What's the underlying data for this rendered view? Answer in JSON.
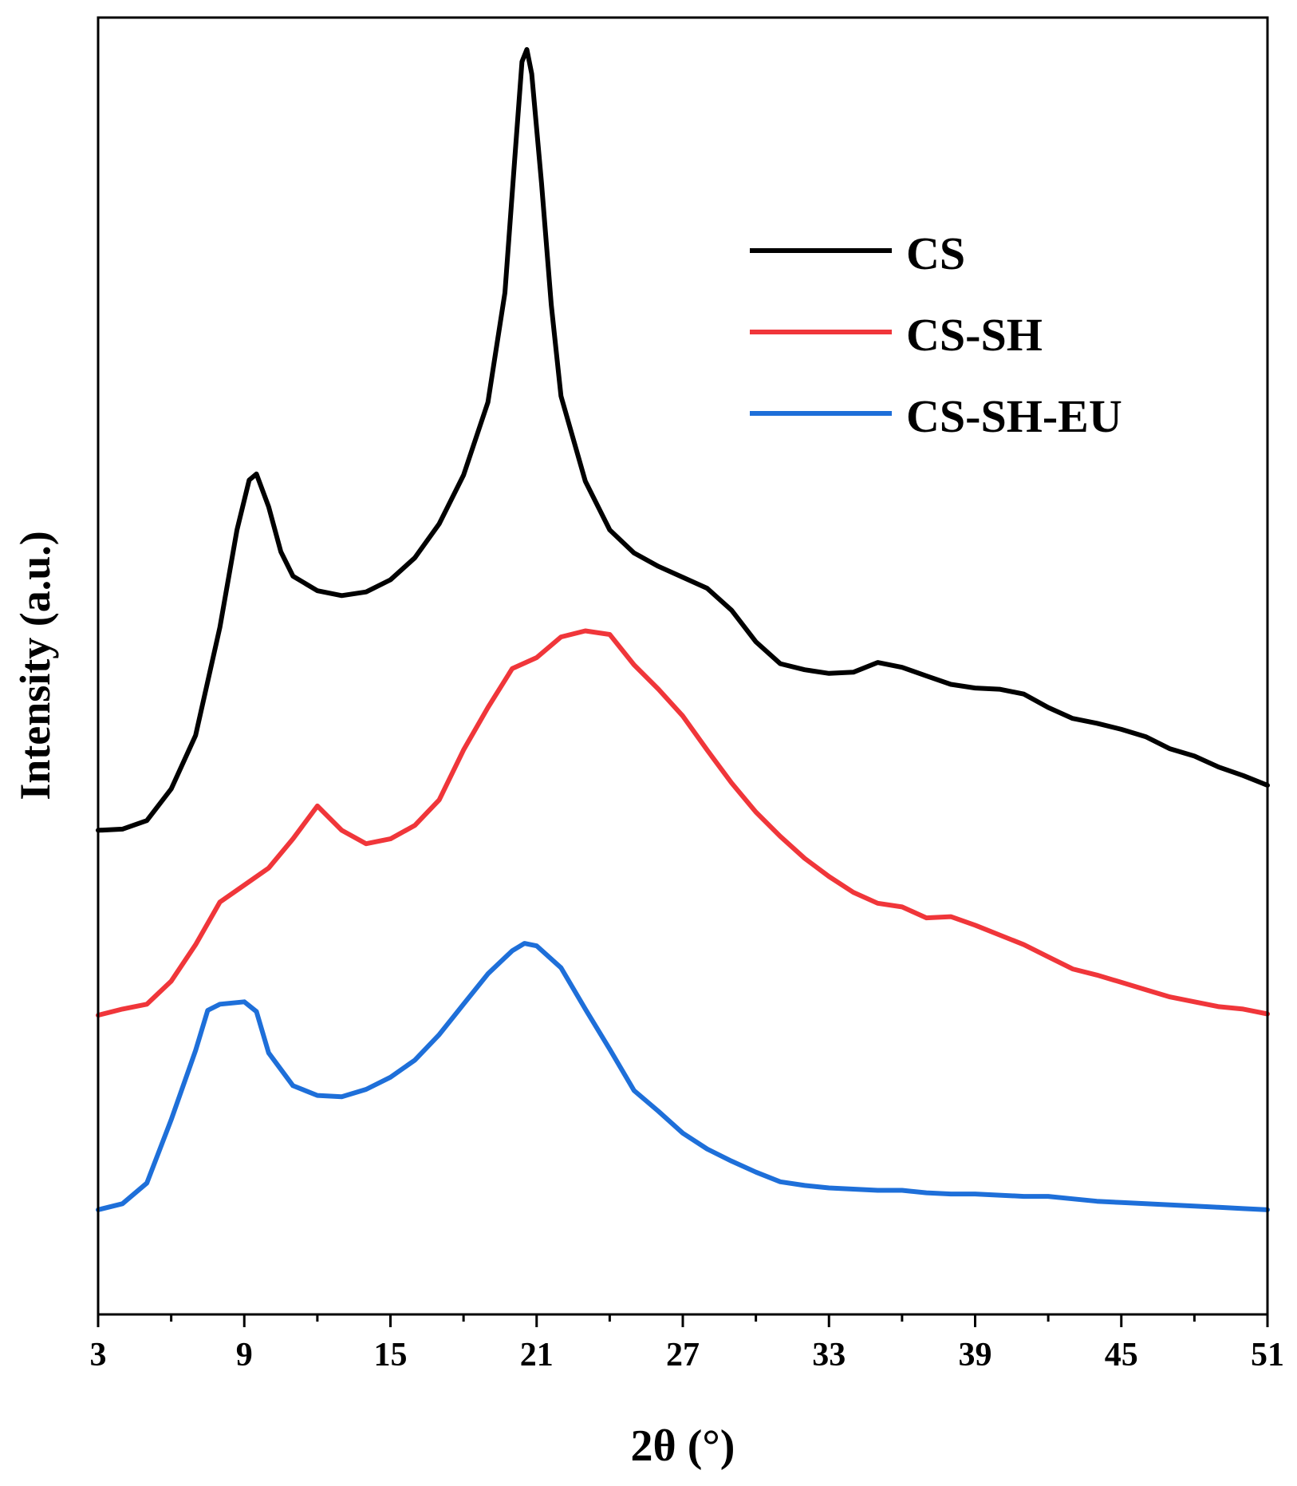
{
  "chart_data": {
    "type": "line",
    "title": "",
    "xlabel": "2θ (°)",
    "ylabel": "Intensity (a.u.)",
    "xlim": [
      3,
      51
    ],
    "ylim": [
      0,
      100
    ],
    "x_ticks": [
      3,
      9,
      15,
      21,
      27,
      33,
      39,
      45,
      51
    ],
    "x_tick_labels": [
      "3",
      "9",
      "15",
      "21",
      "27",
      "33",
      "39",
      "45",
      "51"
    ],
    "y_ticks_shown": false,
    "legend_position": "top-right",
    "series": [
      {
        "name": "CS",
        "color": "#000000",
        "points": [
          [
            3,
            35.8
          ],
          [
            4,
            35.9
          ],
          [
            5,
            36.6
          ],
          [
            6,
            39.2
          ],
          [
            7,
            43.6
          ],
          [
            8,
            52.5
          ],
          [
            8.7,
            60.5
          ],
          [
            9.2,
            64.6
          ],
          [
            9.5,
            65.1
          ],
          [
            10,
            62.4
          ],
          [
            10.5,
            58.7
          ],
          [
            11,
            56.7
          ],
          [
            12,
            55.5
          ],
          [
            13,
            55.1
          ],
          [
            14,
            55.4
          ],
          [
            15,
            56.4
          ],
          [
            16,
            58.2
          ],
          [
            17,
            61
          ],
          [
            18,
            65
          ],
          [
            19,
            71
          ],
          [
            19.7,
            80
          ],
          [
            20.1,
            91
          ],
          [
            20.4,
            99
          ],
          [
            20.6,
            100
          ],
          [
            20.8,
            98
          ],
          [
            21.2,
            89
          ],
          [
            21.6,
            79
          ],
          [
            22,
            71.5
          ],
          [
            23,
            64.5
          ],
          [
            24,
            60.5
          ],
          [
            25,
            58.6
          ],
          [
            26,
            57.5
          ],
          [
            27,
            56.6
          ],
          [
            28,
            55.7
          ],
          [
            29,
            53.9
          ],
          [
            30,
            51.3
          ],
          [
            31,
            49.5
          ],
          [
            32,
            49
          ],
          [
            33,
            48.7
          ],
          [
            34,
            48.8
          ],
          [
            35,
            49.6
          ],
          [
            36,
            49.2
          ],
          [
            37,
            48.5
          ],
          [
            38,
            47.8
          ],
          [
            39,
            47.5
          ],
          [
            40,
            47.4
          ],
          [
            41,
            47
          ],
          [
            42,
            45.9
          ],
          [
            43,
            45
          ],
          [
            44,
            44.6
          ],
          [
            45,
            44.1
          ],
          [
            46,
            43.5
          ],
          [
            47,
            42.5
          ],
          [
            48,
            41.9
          ],
          [
            49,
            41
          ],
          [
            50,
            40.3
          ],
          [
            51,
            39.5
          ]
        ]
      },
      {
        "name": "CS-SH",
        "color": "#f0363a",
        "points": [
          [
            3,
            20.6
          ],
          [
            4,
            21.1
          ],
          [
            5,
            21.5
          ],
          [
            6,
            23.4
          ],
          [
            7,
            26.4
          ],
          [
            8,
            29.9
          ],
          [
            9,
            31.3
          ],
          [
            10,
            32.7
          ],
          [
            11,
            35.1
          ],
          [
            12,
            37.8
          ],
          [
            13,
            35.8
          ],
          [
            14,
            34.7
          ],
          [
            15,
            35.1
          ],
          [
            16,
            36.2
          ],
          [
            17,
            38.3
          ],
          [
            18,
            42.4
          ],
          [
            19,
            45.9
          ],
          [
            20,
            49.1
          ],
          [
            21,
            50
          ],
          [
            22,
            51.7
          ],
          [
            23,
            52.2
          ],
          [
            24,
            51.9
          ],
          [
            25,
            49.4
          ],
          [
            26,
            47.4
          ],
          [
            27,
            45.2
          ],
          [
            28,
            42.4
          ],
          [
            29,
            39.7
          ],
          [
            30,
            37.3
          ],
          [
            31,
            35.3
          ],
          [
            32,
            33.5
          ],
          [
            33,
            32
          ],
          [
            34,
            30.7
          ],
          [
            35,
            29.8
          ],
          [
            36,
            29.5
          ],
          [
            37,
            28.6
          ],
          [
            38,
            28.7
          ],
          [
            39,
            28
          ],
          [
            40,
            27.2
          ],
          [
            41,
            26.4
          ],
          [
            42,
            25.4
          ],
          [
            43,
            24.4
          ],
          [
            44,
            23.9
          ],
          [
            45,
            23.3
          ],
          [
            46,
            22.7
          ],
          [
            47,
            22.1
          ],
          [
            48,
            21.7
          ],
          [
            49,
            21.3
          ],
          [
            50,
            21.1
          ],
          [
            51,
            20.7
          ]
        ]
      },
      {
        "name": "CS-SH-EU",
        "color": "#1e6fd9",
        "points": [
          [
            3,
            4.6
          ],
          [
            4,
            5.1
          ],
          [
            5,
            6.8
          ],
          [
            6,
            12
          ],
          [
            7,
            17.7
          ],
          [
            7.5,
            21
          ],
          [
            8,
            21.5
          ],
          [
            8.5,
            21.6
          ],
          [
            9,
            21.7
          ],
          [
            9.5,
            20.9
          ],
          [
            10,
            17.5
          ],
          [
            11,
            14.8
          ],
          [
            12,
            14
          ],
          [
            13,
            13.9
          ],
          [
            14,
            14.5
          ],
          [
            15,
            15.5
          ],
          [
            16,
            16.9
          ],
          [
            17,
            19
          ],
          [
            18,
            21.5
          ],
          [
            19,
            24
          ],
          [
            20,
            25.9
          ],
          [
            20.5,
            26.5
          ],
          [
            21,
            26.3
          ],
          [
            22,
            24.5
          ],
          [
            23,
            21.1
          ],
          [
            24,
            17.8
          ],
          [
            25,
            14.4
          ],
          [
            26,
            12.7
          ],
          [
            27,
            10.9
          ],
          [
            28,
            9.6
          ],
          [
            29,
            8.6
          ],
          [
            30,
            7.7
          ],
          [
            31,
            6.9
          ],
          [
            32,
            6.6
          ],
          [
            33,
            6.4
          ],
          [
            34,
            6.3
          ],
          [
            35,
            6.2
          ],
          [
            36,
            6.2
          ],
          [
            37,
            6
          ],
          [
            38,
            5.9
          ],
          [
            39,
            5.9
          ],
          [
            40,
            5.8
          ],
          [
            41,
            5.7
          ],
          [
            42,
            5.7
          ],
          [
            43,
            5.5
          ],
          [
            44,
            5.3
          ],
          [
            45,
            5.2
          ],
          [
            46,
            5.1
          ],
          [
            47,
            5
          ],
          [
            48,
            4.9
          ],
          [
            49,
            4.8
          ],
          [
            50,
            4.7
          ],
          [
            51,
            4.6
          ]
        ]
      }
    ]
  }
}
